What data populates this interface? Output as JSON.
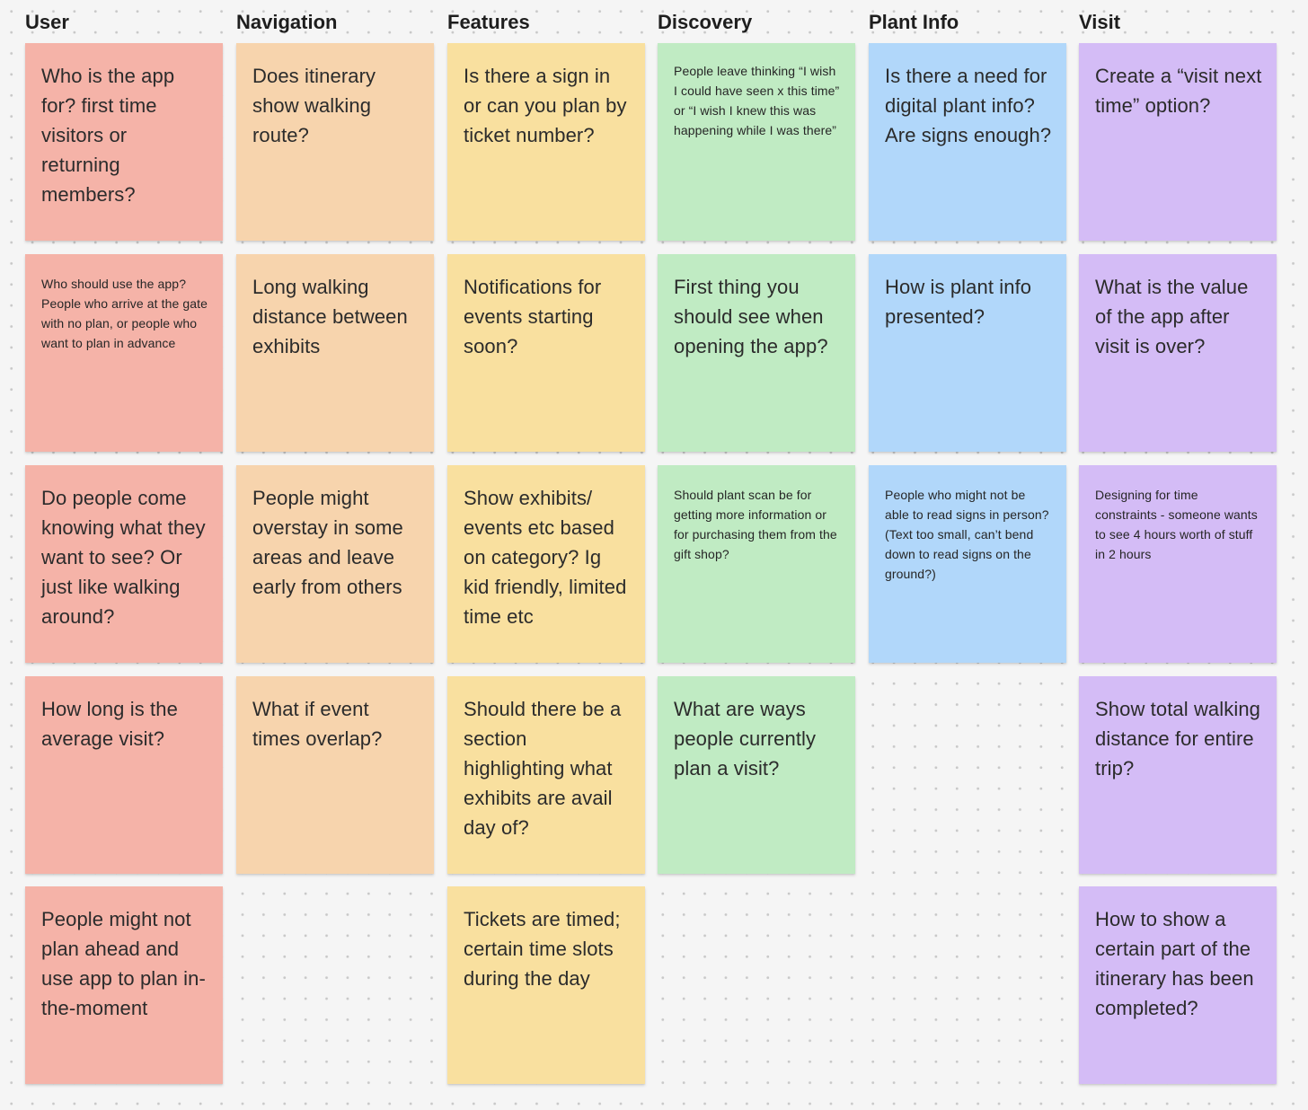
{
  "colors": {
    "user": "#f5b3a8",
    "navigation": "#f7d4ad",
    "features": "#f9e09f",
    "discovery": "#c0ebc3",
    "plant_info": "#b1d7fa",
    "visit": "#d4bcf6",
    "canvas": "#f5f5f5"
  },
  "columns": [
    {
      "title": "User",
      "notes": [
        "Who is the app for? first time visitors or returning members?",
        "Who should use the app? People who arrive at the gate with no plan, or people who want to plan in advance",
        "Do people come knowing what they want to see? Or just like walking around?",
        "How long is the average visit?",
        "People might not plan ahead and use app to plan in-the-moment"
      ]
    },
    {
      "title": "Navigation",
      "notes": [
        "Does itinerary show walking route?",
        "Long walking distance between exhibits",
        "People might overstay in some areas and leave early from others",
        "What if event times overlap?"
      ]
    },
    {
      "title": "Features",
      "notes": [
        "Is there a sign in or can you plan by ticket number?",
        "Notifications for events starting soon?",
        "Show exhibits/ events etc based on category? Ig kid friendly, limited time etc",
        "Should there be a section highlighting what exhibits are avail day of?",
        "Tickets are timed; certain time slots during the day"
      ]
    },
    {
      "title": "Discovery",
      "notes": [
        "People leave thinking “I wish I could have seen x this time” or “I wish I knew this was happening while I was there”",
        "First thing you should see when opening the app?",
        "Should plant scan be for getting more information or for purchasing them from the gift shop?",
        "What are ways people currently plan a visit?"
      ]
    },
    {
      "title": "Plant Info",
      "notes": [
        "Is there a need for digital plant info? Are signs enough?",
        "How is plant info presented?",
        "People who might not be able to read signs in person? (Text too small, can’t bend down to read signs on the ground?)"
      ]
    },
    {
      "title": "Visit",
      "notes": [
        "Create a “visit next time” option?",
        "What is the value of the app after visit is over?",
        "Designing for time constraints - someone wants to see 4 hours worth of stuff in 2 hours",
        "Show total walking distance for entire trip?",
        "How to show a certain part of the itinerary has been completed?"
      ]
    }
  ]
}
